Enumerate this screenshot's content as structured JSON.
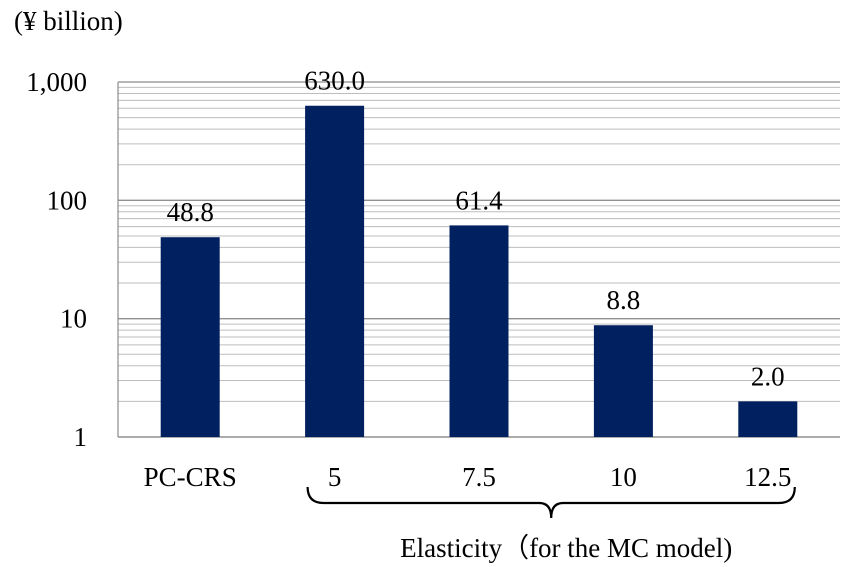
{
  "chart_data": {
    "type": "bar",
    "unit_label": "(¥ billion)",
    "categories": [
      "PC-CRS",
      "5",
      "7.5",
      "10",
      "12.5"
    ],
    "values": [
      48.8,
      630.0,
      61.4,
      8.8,
      2.0
    ],
    "data_labels": [
      "48.8",
      "630.0",
      "61.4",
      "8.8",
      "2.0"
    ],
    "ylim": [
      1,
      1000
    ],
    "yscale": "log",
    "yticks": [
      1,
      10,
      100,
      1000
    ],
    "ytick_labels": [
      "1",
      "10",
      "100",
      "1,000"
    ],
    "grid": true,
    "bar_color": "#002060",
    "bracket_label": "Elasticity（for the MC model)"
  }
}
